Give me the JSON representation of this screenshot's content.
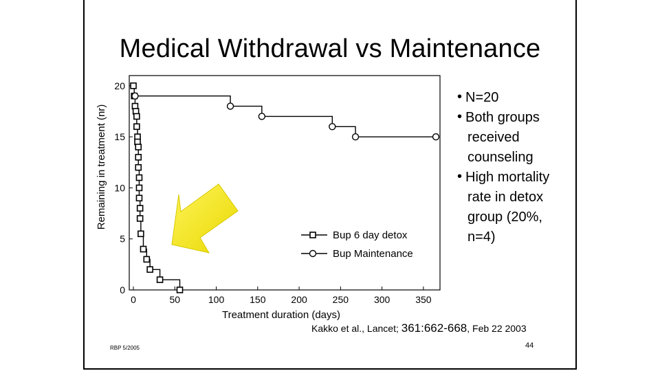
{
  "slide": {
    "title": "Medical Withdrawal vs Maintenance",
    "bullets": [
      {
        "lines": [
          "N=20"
        ]
      },
      {
        "lines": [
          "Both groups",
          "received",
          "counseling"
        ]
      },
      {
        "lines": [
          "High mortality",
          "rate in detox",
          "group (20%,",
          "n=4)"
        ]
      }
    ],
    "citation": {
      "part1": "Kakko et al., Lancet; ",
      "part2": "361:662-668",
      "part3": ", Feb 22 2003"
    },
    "footer_left": "RBP 5/2005",
    "page_number": "44"
  },
  "chart_data": {
    "type": "line",
    "step": true,
    "xlabel": "Treatment duration (days)",
    "ylabel": "Remaining in treatment  (nr)",
    "xlim": [
      -5,
      370
    ],
    "ylim": [
      0,
      21
    ],
    "xticks": [
      0,
      50,
      100,
      150,
      200,
      250,
      300,
      350
    ],
    "yticks": [
      0,
      5,
      10,
      15,
      20
    ],
    "legend_position": "bottom-right",
    "series": [
      {
        "name": "Bup 6 day detox",
        "marker": "square",
        "x": [
          0,
          1,
          2,
          3,
          4,
          4,
          5,
          5,
          6,
          6,
          6,
          7,
          7,
          7,
          8,
          8,
          9,
          12,
          16,
          20,
          32,
          56
        ],
        "y": [
          20,
          19,
          18,
          17.5,
          17,
          16,
          15,
          14.5,
          14,
          13,
          12,
          11,
          10,
          9,
          8,
          7,
          5.5,
          4,
          3,
          2,
          1,
          0
        ]
      },
      {
        "name": "Bup Maintenance",
        "marker": "circle",
        "x": [
          2,
          117,
          155,
          240,
          268,
          365
        ],
        "y": [
          19,
          18,
          17,
          16,
          15,
          15
        ]
      }
    ],
    "annotations": [
      {
        "type": "arrow",
        "color": "#f2e600",
        "points_to": "Bup 6 day detox"
      }
    ]
  }
}
